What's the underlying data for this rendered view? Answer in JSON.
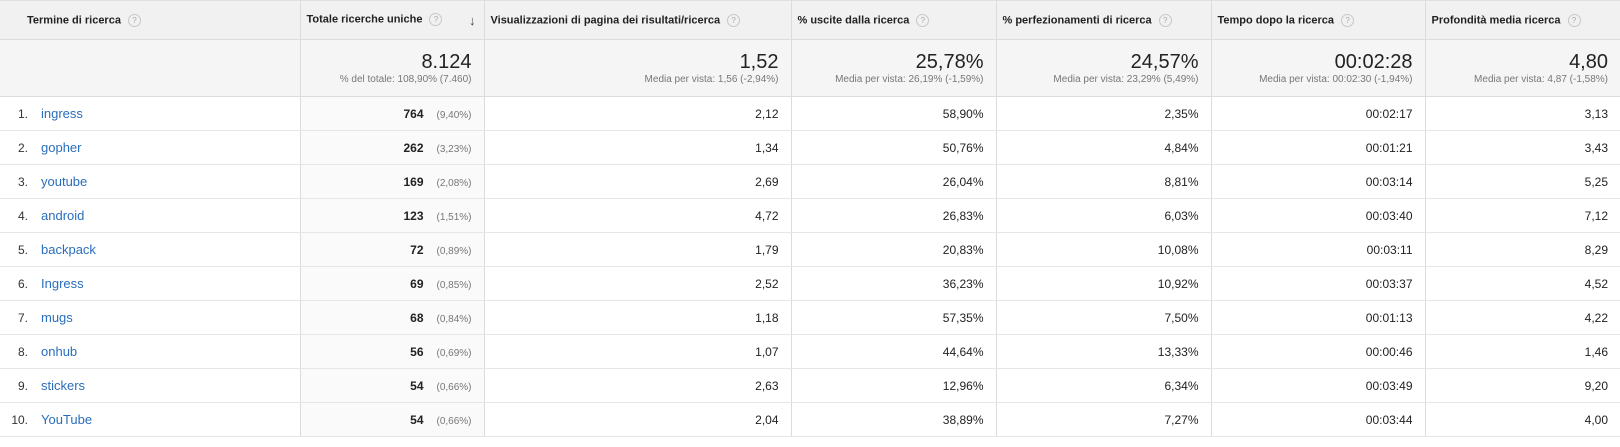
{
  "headers": [
    {
      "label": "Termine di ricerca"
    },
    {
      "label": "Totale ricerche uniche",
      "sort_icon": "↓"
    },
    {
      "label": "Visualizzazioni di pagina dei risultati/ricerca"
    },
    {
      "label": "% uscite dalla ricerca"
    },
    {
      "label": "% perfezionamenti di ricerca"
    },
    {
      "label": "Tempo dopo la ricerca"
    },
    {
      "label": "Profondità media ricerca"
    }
  ],
  "help_glyph": "?",
  "totals": [
    {
      "value": "8.124",
      "sub": "% del totale: 108,90% (7.460)"
    },
    {
      "value": "1,52",
      "sub": "Media per vista: 1,56 (-2,94%)"
    },
    {
      "value": "25,78%",
      "sub": "Media per vista: 26,19% (-1,59%)"
    },
    {
      "value": "24,57%",
      "sub": "Media per vista: 23,29% (5,49%)"
    },
    {
      "value": "00:02:28",
      "sub": "Media per vista: 00:02:30 (-1,94%)"
    },
    {
      "value": "4,80",
      "sub": "Media per vista: 4,87 (-1,58%)"
    }
  ],
  "rows": [
    {
      "num": "1.",
      "term": "ingress",
      "searches": "764",
      "pct": "(9,40%)",
      "views": "2,12",
      "exits": "58,90%",
      "refinements": "2,35%",
      "time": "00:02:17",
      "depth": "3,13"
    },
    {
      "num": "2.",
      "term": "gopher",
      "searches": "262",
      "pct": "(3,23%)",
      "views": "1,34",
      "exits": "50,76%",
      "refinements": "4,84%",
      "time": "00:01:21",
      "depth": "3,43"
    },
    {
      "num": "3.",
      "term": "youtube",
      "searches": "169",
      "pct": "(2,08%)",
      "views": "2,69",
      "exits": "26,04%",
      "refinements": "8,81%",
      "time": "00:03:14",
      "depth": "5,25"
    },
    {
      "num": "4.",
      "term": "android",
      "searches": "123",
      "pct": "(1,51%)",
      "views": "4,72",
      "exits": "26,83%",
      "refinements": "6,03%",
      "time": "00:03:40",
      "depth": "7,12"
    },
    {
      "num": "5.",
      "term": "backpack",
      "searches": "72",
      "pct": "(0,89%)",
      "views": "1,79",
      "exits": "20,83%",
      "refinements": "10,08%",
      "time": "00:03:11",
      "depth": "8,29"
    },
    {
      "num": "6.",
      "term": "Ingress",
      "searches": "69",
      "pct": "(0,85%)",
      "views": "2,52",
      "exits": "36,23%",
      "refinements": "10,92%",
      "time": "00:03:37",
      "depth": "4,52"
    },
    {
      "num": "7.",
      "term": "mugs",
      "searches": "68",
      "pct": "(0,84%)",
      "views": "1,18",
      "exits": "57,35%",
      "refinements": "7,50%",
      "time": "00:01:13",
      "depth": "4,22"
    },
    {
      "num": "8.",
      "term": "onhub",
      "searches": "56",
      "pct": "(0,69%)",
      "views": "1,07",
      "exits": "44,64%",
      "refinements": "13,33%",
      "time": "00:00:46",
      "depth": "1,46"
    },
    {
      "num": "9.",
      "term": "stickers",
      "searches": "54",
      "pct": "(0,66%)",
      "views": "2,63",
      "exits": "12,96%",
      "refinements": "6,34%",
      "time": "00:03:49",
      "depth": "9,20"
    },
    {
      "num": "10.",
      "term": "YouTube",
      "searches": "54",
      "pct": "(0,66%)",
      "views": "2,04",
      "exits": "38,89%",
      "refinements": "7,27%",
      "time": "00:03:44",
      "depth": "4,00"
    }
  ],
  "colors": {
    "link": "#2a6ebb",
    "header_bg": "#f1f1f1",
    "totals_bg": "#f5f5f5",
    "border": "#dcdcdc"
  }
}
